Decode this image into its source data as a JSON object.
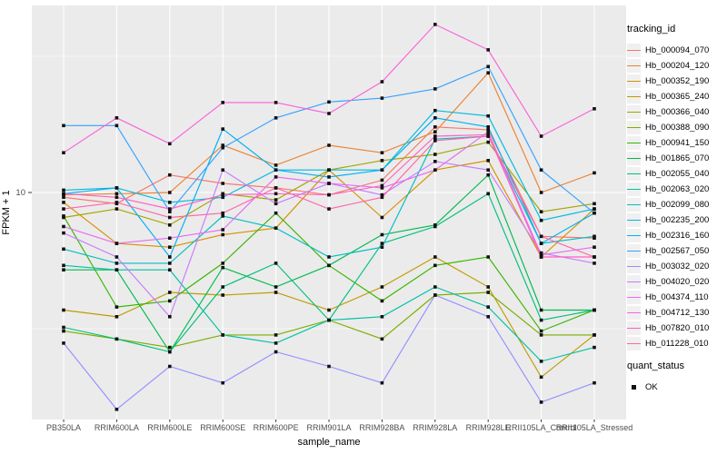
{
  "chart_data": {
    "type": "line",
    "title": "",
    "xlabel": "sample_name",
    "ylabel": "FPKM + 1",
    "y_scale": "log10",
    "y_major_breaks": [
      10
    ],
    "y_major_labels": [
      "10"
    ],
    "y_minor_breaks": [
      3.1623,
      31.623
    ],
    "ylim": [
      1.45,
      48.5
    ],
    "grid": true,
    "legend_position": "right",
    "point_shape": "filled-square",
    "point_color": "#111111",
    "categories": [
      "PB350LA",
      "RRIM600LA",
      "RRIM600LE",
      "RRIM600SE",
      "RRIM600PE",
      "RRIM901LA",
      "RRIM928BA",
      "RRIM928LA",
      "RRIM928LE",
      "RRII105LA_Control",
      "RRII105LA_Stressed"
    ],
    "series": [
      {
        "name": "Hb_000094_070",
        "color": "#F8766D",
        "values": [
          9.6,
          9.1,
          11.6,
          10.8,
          10.4,
          9.8,
          11.1,
          17.4,
          17.0,
          6.9,
          6.8
        ]
      },
      {
        "name": "Hb_000204_120",
        "color": "#EA8331",
        "values": [
          9.8,
          9.9,
          10.0,
          14.9,
          12.6,
          14.9,
          14.0,
          16.7,
          27.5,
          10.0,
          11.8
        ]
      },
      {
        "name": "Hb_000352_190",
        "color": "#D89000",
        "values": [
          9.2,
          6.5,
          6.3,
          7.0,
          7.4,
          12.1,
          8.1,
          12.1,
          13.1,
          5.8,
          8.7
        ]
      },
      {
        "name": "Hb_000365_240",
        "color": "#C09B00",
        "values": [
          3.7,
          3.5,
          4.3,
          4.2,
          4.3,
          3.7,
          4.5,
          5.8,
          4.5,
          2.1,
          3.0
        ]
      },
      {
        "name": "Hb_000366_040",
        "color": "#A3A500",
        "values": [
          8.1,
          8.7,
          7.6,
          9.9,
          9.4,
          12.1,
          13.1,
          13.8,
          15.3,
          8.5,
          9.1
        ]
      },
      {
        "name": "Hb_000388_090",
        "color": "#7CAE00",
        "values": [
          3.1,
          2.9,
          2.7,
          3.0,
          3.0,
          3.4,
          2.9,
          4.2,
          4.3,
          3.0,
          3.0
        ]
      },
      {
        "name": "Hb_000941_150",
        "color": "#39B600",
        "values": [
          8.2,
          3.8,
          4.0,
          5.5,
          8.4,
          5.4,
          4.0,
          5.4,
          5.8,
          3.1,
          3.7
        ]
      },
      {
        "name": "Hb_001865_070",
        "color": "#00BB4E",
        "values": [
          5.2,
          5.2,
          2.6,
          5.3,
          4.5,
          5.4,
          7.0,
          7.6,
          11.6,
          3.7,
          3.7
        ]
      },
      {
        "name": "Hb_002055_040",
        "color": "#00BF7D",
        "values": [
          3.2,
          2.9,
          2.6,
          4.5,
          5.5,
          3.4,
          6.5,
          7.5,
          9.9,
          3.4,
          3.7
        ]
      },
      {
        "name": "Hb_002063_020",
        "color": "#00C1A3",
        "values": [
          5.4,
          5.2,
          5.2,
          3.0,
          2.8,
          3.4,
          3.5,
          4.5,
          3.8,
          2.4,
          2.7
        ]
      },
      {
        "name": "Hb_002099_080",
        "color": "#00BFC4",
        "values": [
          6.2,
          5.5,
          5.5,
          8.2,
          7.4,
          5.8,
          6.3,
          15.7,
          16.1,
          6.5,
          6.9
        ]
      },
      {
        "name": "Hb_002235_200",
        "color": "#00BAE0",
        "values": [
          10.2,
          10.4,
          9.2,
          9.6,
          12.1,
          12.1,
          12.1,
          20.0,
          19.1,
          7.9,
          8.7
        ]
      },
      {
        "name": "Hb_002316_160",
        "color": "#00B0F6",
        "values": [
          9.9,
          10.4,
          5.8,
          17.1,
          12.1,
          11.4,
          12.1,
          18.8,
          17.4,
          6.5,
          8.4
        ]
      },
      {
        "name": "Hb_002567_050",
        "color": "#35A2FF",
        "values": [
          17.6,
          17.6,
          8.5,
          14.6,
          18.8,
          21.5,
          22.2,
          24.0,
          29.0,
          12.1,
          8.4
        ]
      },
      {
        "name": "Hb_003032_020",
        "color": "#9590FF",
        "values": [
          2.8,
          1.6,
          2.3,
          2.0,
          2.6,
          2.3,
          2.0,
          4.2,
          3.5,
          1.7,
          2.0
        ]
      },
      {
        "name": "Hb_004020_020",
        "color": "#C77CFF",
        "values": [
          7.1,
          5.8,
          3.5,
          12.1,
          9.1,
          10.8,
          9.8,
          13.0,
          12.1,
          6.0,
          5.5
        ]
      },
      {
        "name": "Hb_004374_110",
        "color": "#E76BF3",
        "values": [
          7.5,
          6.5,
          6.8,
          7.3,
          11.4,
          10.8,
          10.4,
          12.1,
          16.7,
          5.9,
          6.3
        ]
      },
      {
        "name": "Hb_004712_130",
        "color": "#FA62DB",
        "values": [
          14.0,
          18.8,
          15.1,
          21.4,
          21.4,
          19.5,
          25.5,
          41.4,
          33.4,
          16.1,
          20.3
        ]
      },
      {
        "name": "Hb_007820_010",
        "color": "#FF61C3",
        "values": [
          9.9,
          9.6,
          8.7,
          9.8,
          9.9,
          9.8,
          10.6,
          16.1,
          16.3,
          5.8,
          5.8
        ]
      },
      {
        "name": "Hb_011228_010",
        "color": "#FF65AA",
        "values": [
          8.7,
          9.2,
          8.1,
          8.4,
          10.4,
          8.7,
          9.6,
          15.5,
          16.1,
          6.9,
          5.8
        ]
      }
    ],
    "legend": {
      "color_title": "tracking_id",
      "shape_title": "quant_status",
      "shape_items": [
        {
          "label": "OK"
        }
      ]
    }
  },
  "colors": {
    "panel_bg": "#EBEBEB",
    "gridline": "#FFFFFF",
    "tick_text": "#4D4D4D",
    "tick_mark": "#333333",
    "legend_key_bg": "#F0F0F0"
  }
}
